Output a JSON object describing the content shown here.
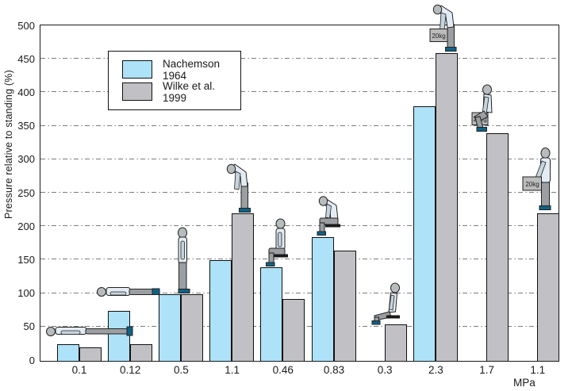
{
  "chart_data": {
    "type": "bar",
    "title": "",
    "xlabel": "MPa",
    "ylabel": "Pressure relative to standing (%)",
    "ylim": [
      0,
      500
    ],
    "ytick_step": 50,
    "grid": "horizontal dash-dot lines every 50",
    "legend_position": "upper-left inside plot",
    "categories": [
      "0.1",
      "0.12",
      "0.5",
      "1.1",
      "0.46",
      "0.83",
      "0.3",
      "2.3",
      "1.7",
      "1.1"
    ],
    "series": [
      {
        "name": "Nachemson 1964",
        "color": "#ade2f9",
        "values": [
          25,
          75,
          100,
          150,
          140,
          185,
          null,
          380,
          null,
          null
        ]
      },
      {
        "name": "Wilke et al. 1999",
        "color": "#c1c1c5",
        "values": [
          20,
          25,
          100,
          220,
          92,
          165,
          55,
          460,
          340,
          220
        ]
      }
    ],
    "posture_icons": [
      {
        "icon": "figure-lying-supine"
      },
      {
        "icon": "figure-lying-on-side"
      },
      {
        "icon": "figure-standing"
      },
      {
        "icon": "figure-standing-bent-forward"
      },
      {
        "icon": "figure-sitting-upright"
      },
      {
        "icon": "figure-sitting-bent-forward"
      },
      {
        "icon": "figure-sitting-slouched"
      },
      {
        "icon": "figure-stoop-lifting",
        "box_label": "20kg"
      },
      {
        "icon": "figure-squat-lifting",
        "box_label": "20kg"
      },
      {
        "icon": "figure-standing-holding-weight",
        "box_label": "20kg"
      }
    ]
  }
}
